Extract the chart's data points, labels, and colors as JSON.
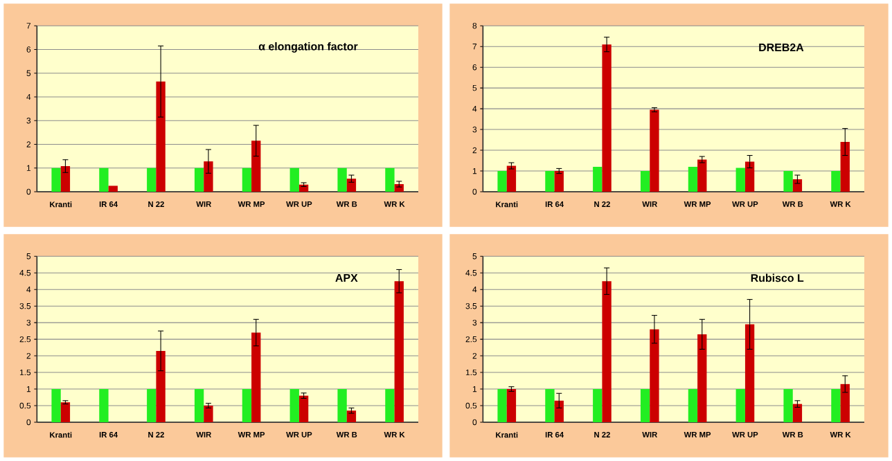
{
  "chart_data": [
    {
      "type": "bar",
      "title": "α elongation factor",
      "categories": [
        "Kranti",
        "IR 64",
        "N 22",
        "WIR",
        "WR MP",
        "WR UP",
        "WR B",
        "WR K"
      ],
      "ylim": [
        0,
        7
      ],
      "yticks": [
        0,
        1,
        2,
        3,
        4,
        5,
        6,
        7
      ],
      "grid": "y",
      "series": [
        {
          "color": "#22ee22",
          "values": [
            1,
            1,
            1,
            1,
            1,
            1,
            1,
            1
          ]
        },
        {
          "color": "#cc0000",
          "values": [
            1.08,
            0.25,
            4.65,
            1.28,
            2.15,
            0.3,
            0.55,
            0.32
          ],
          "errors": [
            0.27,
            null,
            1.5,
            0.5,
            0.65,
            0.08,
            0.15,
            0.12
          ]
        }
      ]
    },
    {
      "type": "bar",
      "title": "DREB2A",
      "categories": [
        "Kranti",
        "IR 64",
        "N 22",
        "WIR",
        "WR MP",
        "WR UP",
        "WR B",
        "WR K"
      ],
      "ylim": [
        0,
        8
      ],
      "yticks": [
        0,
        1,
        2,
        3,
        4,
        5,
        6,
        7,
        8
      ],
      "grid": "y",
      "series": [
        {
          "color": "#22ee22",
          "values": [
            1,
            1,
            1.2,
            1,
            1.2,
            1.15,
            1,
            1
          ]
        },
        {
          "color": "#cc0000",
          "values": [
            1.25,
            1.0,
            7.1,
            3.95,
            1.55,
            1.45,
            0.6,
            2.4
          ],
          "errors": [
            0.15,
            0.12,
            0.35,
            0.1,
            0.15,
            0.3,
            0.2,
            0.65
          ]
        }
      ]
    },
    {
      "type": "bar",
      "title": "APX",
      "categories": [
        "Kranti",
        "IR 64",
        "N 22",
        "WIR",
        "WR MP",
        "WR UP",
        "WR B",
        "WR K"
      ],
      "ylim": [
        0,
        5
      ],
      "yticks": [
        0,
        0.5,
        1,
        1.5,
        2,
        2.5,
        3,
        3.5,
        4,
        4.5,
        5
      ],
      "grid": "y",
      "series": [
        {
          "color": "#22ee22",
          "values": [
            1,
            1,
            1,
            1,
            1,
            1,
            1,
            1
          ]
        },
        {
          "color": "#cc0000",
          "values": [
            0.6,
            null,
            2.15,
            0.5,
            2.7,
            0.8,
            0.35,
            4.25
          ],
          "errors": [
            0.05,
            null,
            0.6,
            0.07,
            0.4,
            0.08,
            0.08,
            0.35
          ]
        }
      ]
    },
    {
      "type": "bar",
      "title": "Rubisco L",
      "categories": [
        "Kranti",
        "IR 64",
        "N 22",
        "WIR",
        "WR MP",
        "WR UP",
        "WR B",
        "WR K"
      ],
      "ylim": [
        0,
        5
      ],
      "yticks": [
        0,
        0.5,
        1,
        1.5,
        2,
        2.5,
        3,
        3.5,
        4,
        4.5,
        5
      ],
      "grid": "y",
      "series": [
        {
          "color": "#22ee22",
          "values": [
            1,
            1,
            1,
            1,
            1,
            1,
            1,
            1
          ]
        },
        {
          "color": "#cc0000",
          "values": [
            1.0,
            0.65,
            4.25,
            2.8,
            2.65,
            2.95,
            0.55,
            1.15
          ],
          "errors": [
            0.07,
            0.22,
            0.4,
            0.42,
            0.45,
            0.75,
            0.1,
            0.25
          ]
        }
      ]
    }
  ]
}
